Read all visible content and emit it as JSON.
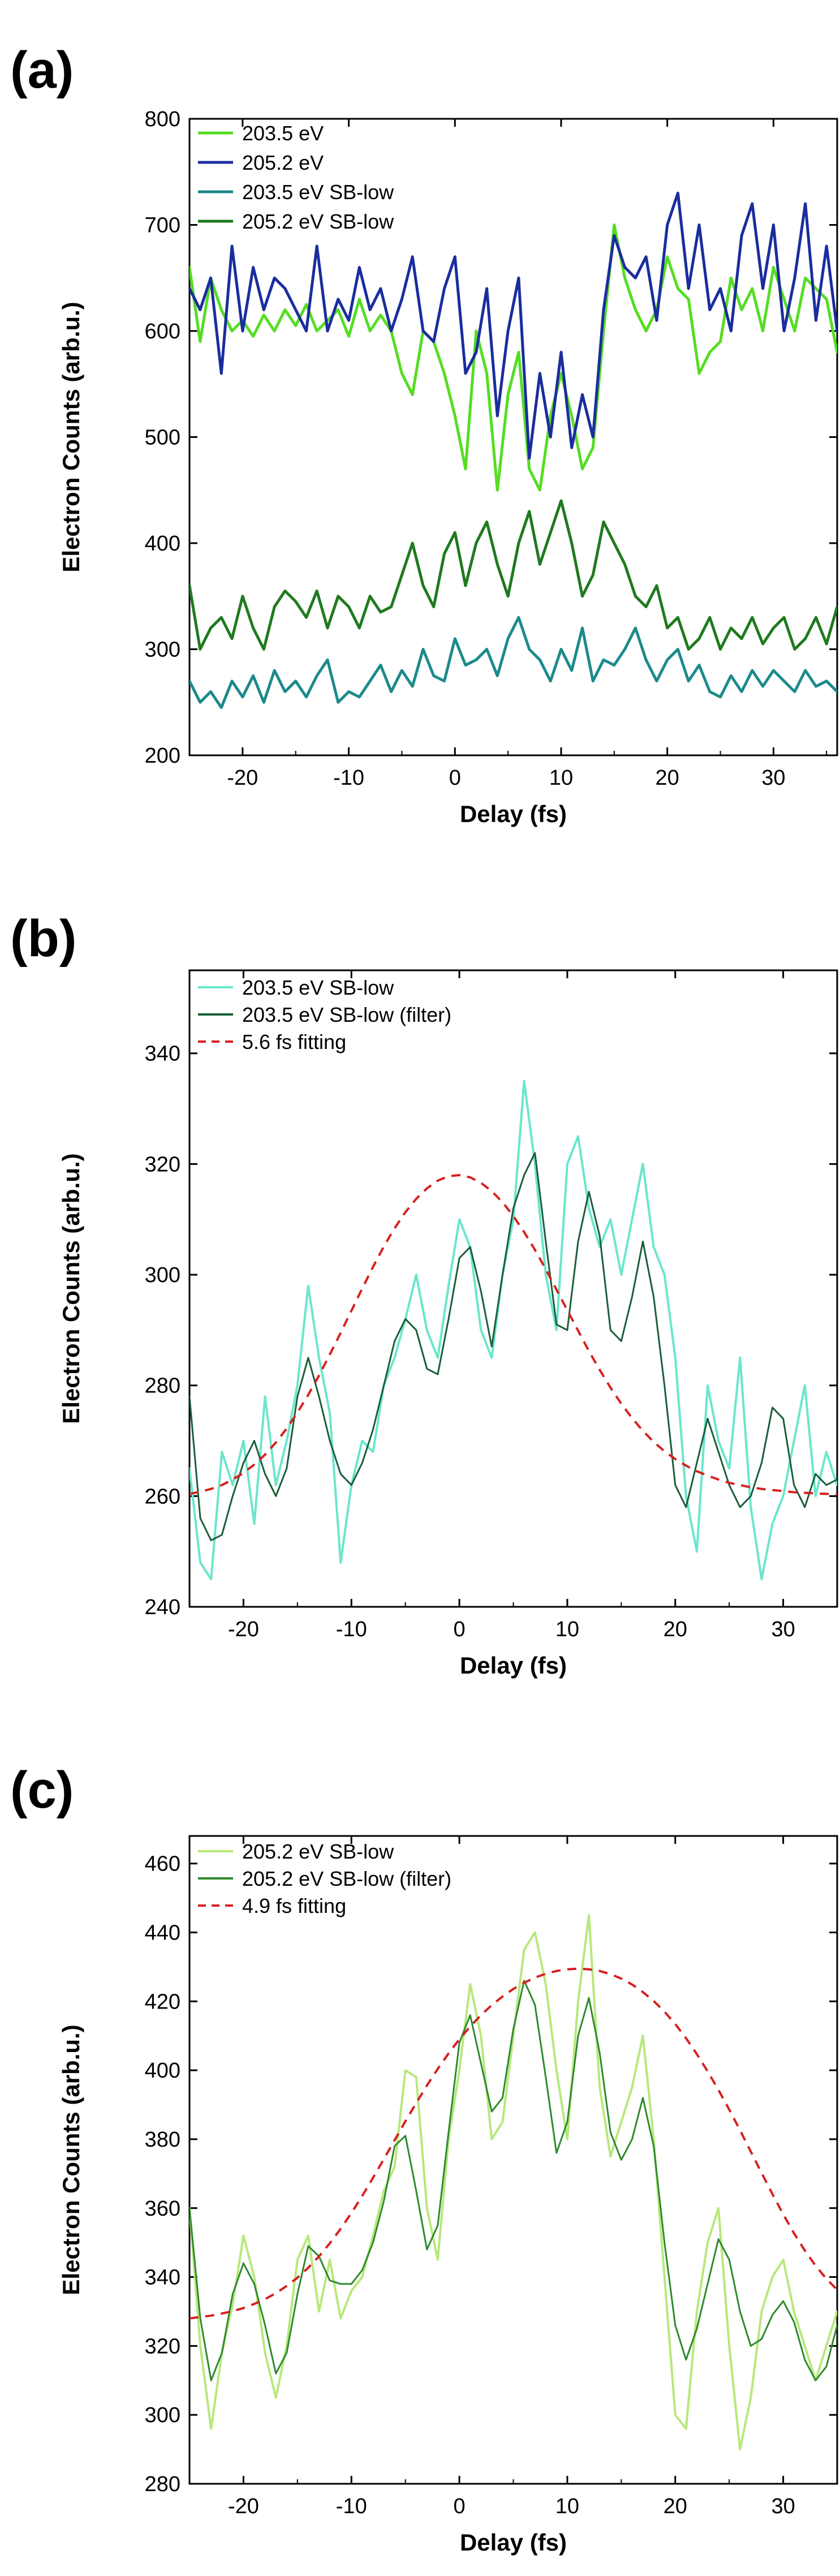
{
  "panels": [
    {
      "label": "(a)",
      "chart_data": {
        "type": "line",
        "xlabel": "Delay (fs)",
        "ylabel": "Electron Counts (arb.u.)",
        "xlim": [
          -25,
          36
        ],
        "ylim": [
          200,
          800
        ],
        "xticks": [
          -20,
          -10,
          0,
          10,
          20,
          30
        ],
        "yticks": [
          200,
          300,
          400,
          500,
          600,
          700,
          800
        ],
        "grid": false,
        "legend_position": "top-left",
        "x": [
          -25,
          -24,
          -23,
          -22,
          -21,
          -20,
          -19,
          -18,
          -17,
          -16,
          -15,
          -14,
          -13,
          -12,
          -11,
          -10,
          -9,
          -8,
          -7,
          -6,
          -5,
          -4,
          -3,
          -2,
          -1,
          0,
          1,
          2,
          3,
          4,
          5,
          6,
          7,
          8,
          9,
          10,
          11,
          12,
          13,
          14,
          15,
          16,
          17,
          18,
          19,
          20,
          21,
          22,
          23,
          24,
          25,
          26,
          27,
          28,
          29,
          30,
          31,
          32,
          33,
          34,
          35,
          36
        ],
        "series": [
          {
            "name": "203.5 eV",
            "color": "#55dd22",
            "width": 5,
            "values": [
              660,
              590,
              650,
              620,
              600,
              610,
              595,
              615,
              600,
              620,
              605,
              625,
              600,
              610,
              620,
              595,
              630,
              600,
              615,
              600,
              560,
              540,
              600,
              590,
              560,
              520,
              470,
              600,
              560,
              450,
              540,
              580,
              470,
              450,
              520,
              560,
              520,
              470,
              490,
              600,
              700,
              650,
              620,
              600,
              620,
              670,
              640,
              630,
              560,
              580,
              590,
              650,
              620,
              640,
              600,
              660,
              630,
              600,
              650,
              640,
              630,
              580
            ]
          },
          {
            "name": "205.2 eV",
            "color": "#1a2d9e",
            "width": 5,
            "values": [
              640,
              620,
              650,
              560,
              680,
              600,
              660,
              620,
              650,
              640,
              620,
              600,
              680,
              600,
              630,
              610,
              660,
              620,
              640,
              600,
              630,
              670,
              600,
              590,
              640,
              670,
              560,
              580,
              640,
              520,
              600,
              650,
              480,
              560,
              500,
              580,
              490,
              540,
              500,
              620,
              690,
              660,
              650,
              670,
              610,
              700,
              730,
              640,
              700,
              620,
              640,
              600,
              690,
              720,
              640,
              700,
              600,
              650,
              720,
              610,
              680,
              600
            ]
          },
          {
            "name": "203.5 eV SB-low",
            "color": "#1d8a8a",
            "width": 5,
            "values": [
              270,
              250,
              260,
              245,
              270,
              255,
              275,
              250,
              280,
              260,
              270,
              255,
              275,
              290,
              250,
              260,
              255,
              270,
              285,
              260,
              280,
              265,
              300,
              275,
              270,
              310,
              285,
              290,
              300,
              275,
              310,
              330,
              300,
              290,
              270,
              300,
              280,
              320,
              270,
              290,
              285,
              300,
              320,
              290,
              270,
              290,
              300,
              270,
              285,
              260,
              255,
              275,
              260,
              280,
              265,
              280,
              270,
              260,
              280,
              265,
              270,
              260
            ]
          },
          {
            "name": "205.2 eV SB-low",
            "color": "#1f7a1f",
            "width": 5,
            "values": [
              360,
              300,
              320,
              330,
              310,
              350,
              320,
              300,
              340,
              355,
              345,
              330,
              355,
              320,
              350,
              340,
              320,
              350,
              335,
              340,
              370,
              400,
              360,
              340,
              390,
              410,
              360,
              400,
              420,
              380,
              350,
              400,
              430,
              380,
              410,
              440,
              400,
              350,
              370,
              420,
              400,
              380,
              350,
              340,
              360,
              320,
              330,
              300,
              310,
              330,
              300,
              320,
              310,
              330,
              305,
              320,
              330,
              300,
              310,
              330,
              305,
              340
            ]
          }
        ]
      }
    },
    {
      "label": "(b)",
      "chart_data": {
        "type": "line",
        "xlabel": "Delay (fs)",
        "ylabel": "Electron Counts (arb.u.)",
        "xlim": [
          -25,
          35
        ],
        "ylim": [
          240,
          355
        ],
        "xticks": [
          -20,
          -10,
          0,
          10,
          20,
          30
        ],
        "yticks": [
          240,
          260,
          280,
          300,
          320,
          340
        ],
        "grid": false,
        "legend_position": "top-left",
        "x": [
          -25,
          -24,
          -23,
          -22,
          -21,
          -20,
          -19,
          -18,
          -17,
          -16,
          -15,
          -14,
          -13,
          -12,
          -11,
          -10,
          -9,
          -8,
          -7,
          -6,
          -5,
          -4,
          -3,
          -2,
          -1,
          0,
          1,
          2,
          3,
          4,
          5,
          6,
          7,
          8,
          9,
          10,
          11,
          12,
          13,
          14,
          15,
          16,
          17,
          18,
          19,
          20,
          21,
          22,
          23,
          24,
          25,
          26,
          27,
          28,
          29,
          30,
          31,
          32,
          33,
          34,
          35
        ],
        "series": [
          {
            "name": "203.5 eV SB-low",
            "color": "#6ae6cc",
            "width": 4,
            "values": [
              265,
              248,
              245,
              268,
              262,
              270,
              255,
              278,
              262,
              270,
              280,
              298,
              285,
              275,
              248,
              262,
              270,
              268,
              280,
              285,
              292,
              300,
              290,
              285,
              298,
              310,
              305,
              290,
              285,
              300,
              310,
              335,
              320,
              300,
              290,
              320,
              325,
              312,
              305,
              310,
              300,
              310,
              320,
              305,
              300,
              285,
              260,
              250,
              280,
              270,
              265,
              285,
              258,
              245,
              255,
              260,
              270,
              280,
              260,
              268,
              262
            ]
          },
          {
            "name": "203.5 eV SB-low (filter)",
            "color": "#1a5e3a",
            "width": 3,
            "values": [
              278,
              256,
              252,
              253,
              260,
              266,
              270,
              264,
              260,
              265,
              278,
              285,
              278,
              270,
              264,
              262,
              266,
              272,
              280,
              288,
              292,
              290,
              283,
              282,
              292,
              303,
              305,
              297,
              287,
              300,
              312,
              318,
              322,
              306,
              291,
              290,
              306,
              315,
              307,
              290,
              288,
              296,
              306,
              296,
              280,
              262,
              258,
              266,
              274,
              268,
              262,
              258,
              260,
              266,
              276,
              274,
              262,
              258,
              264,
              262,
              263
            ]
          },
          {
            "name": "5.6 fs fitting",
            "color": "#d62020",
            "width": 4,
            "dash": true,
            "values": [
              260.4,
              260.8,
              261.3,
              262.0,
              263.0,
              264.2,
              265.7,
              267.5,
              269.7,
              272.2,
              275.1,
              278.3,
              281.8,
              285.6,
              289.5,
              293.5,
              297.5,
              301.4,
              305.1,
              308.4,
              311.3,
              313.7,
              315.6,
              317.0,
              317.8,
              318.0,
              317.6,
              316.6,
              315.1,
              313.1,
              310.6,
              307.7,
              304.5,
              301.0,
              297.3,
              293.6,
              289.9,
              286.2,
              282.8,
              279.6,
              276.7,
              274.1,
              271.8,
              269.8,
              268.1,
              266.7,
              265.5,
              264.5,
              263.7,
              263.0,
              262.4,
              262.0,
              261.6,
              261.3,
              261.1,
              260.9,
              260.7,
              260.6,
              260.5,
              260.4,
              260.3
            ]
          }
        ]
      }
    },
    {
      "label": "(c)",
      "chart_data": {
        "type": "line",
        "xlabel": "Delay (fs)",
        "ylabel": "Electron Counts (arb.u.)",
        "xlim": [
          -25,
          35
        ],
        "ylim": [
          280,
          468
        ],
        "xticks": [
          -20,
          -10,
          0,
          10,
          20,
          30
        ],
        "yticks": [
          280,
          300,
          320,
          340,
          360,
          380,
          400,
          420,
          440,
          460
        ],
        "grid": false,
        "legend_position": "top-left",
        "x": [
          -25,
          -24,
          -23,
          -22,
          -21,
          -20,
          -19,
          -18,
          -17,
          -16,
          -15,
          -14,
          -13,
          -12,
          -11,
          -10,
          -9,
          -8,
          -7,
          -6,
          -5,
          -4,
          -3,
          -2,
          -1,
          0,
          1,
          2,
          3,
          4,
          5,
          6,
          7,
          8,
          9,
          10,
          11,
          12,
          13,
          14,
          15,
          16,
          17,
          18,
          19,
          20,
          21,
          22,
          23,
          24,
          25,
          26,
          27,
          28,
          29,
          30,
          31,
          32,
          33,
          34,
          35
        ],
        "series": [
          {
            "name": "205.2 eV SB-low",
            "color": "#b8e87a",
            "width": 4,
            "values": [
              360,
              320,
              296,
              318,
              332,
              352,
              340,
              318,
              305,
              320,
              345,
              352,
              330,
              345,
              328,
              336,
              340,
              352,
              365,
              372,
              400,
              398,
              360,
              345,
              380,
              400,
              425,
              410,
              380,
              385,
              410,
              435,
              440,
              425,
              400,
              380,
              420,
              445,
              395,
              375,
              385,
              395,
              410,
              380,
              340,
              300,
              296,
              330,
              350,
              360,
              320,
              290,
              305,
              330,
              340,
              345,
              330,
              320,
              310,
              320,
              330
            ]
          },
          {
            "name": "205.2 eV SB-low (filter)",
            "color": "#2e8a2e",
            "width": 3,
            "values": [
              360,
              328,
              310,
              318,
              335,
              344,
              338,
              326,
              312,
              318,
              335,
              349,
              346,
              339,
              338,
              338,
              342,
              350,
              362,
              378,
              381,
              365,
              348,
              355,
              382,
              408,
              416,
              402,
              388,
              392,
              412,
              426,
              419,
              398,
              376,
              385,
              410,
              421,
              405,
              382,
              374,
              380,
              392,
              378,
              350,
              326,
              316,
              325,
              338,
              351,
              345,
              330,
              320,
              322,
              329,
              333,
              327,
              316,
              310,
              314,
              326
            ]
          },
          {
            "name": "4.9 fs fitting",
            "color": "#d62020",
            "width": 4,
            "dash": true,
            "values": [
              328.0,
              328.4,
              328.8,
              329.4,
              330.1,
              331.0,
              332.2,
              333.6,
              335.3,
              337.4,
              339.8,
              342.7,
              346.0,
              349.8,
              354.0,
              358.6,
              363.5,
              368.8,
              374.2,
              379.7,
              385.2,
              390.5,
              395.6,
              400.4,
              404.9,
              409.0,
              412.7,
              416.0,
              418.9,
              421.4,
              423.6,
              425.4,
              426.9,
              428.0,
              428.8,
              429.3,
              429.5,
              429.3,
              428.8,
              427.9,
              426.6,
              424.9,
              422.7,
              420.1,
              417.0,
              413.4,
              409.3,
              404.7,
              399.7,
              394.3,
              388.6,
              382.6,
              376.4,
              370.2,
              364.1,
              358.2,
              352.7,
              347.7,
              343.3,
              339.5,
              336.3
            ]
          }
        ]
      }
    }
  ]
}
